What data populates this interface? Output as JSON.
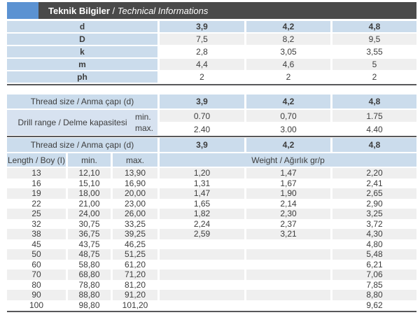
{
  "colors": {
    "accent_blue": "#5b92d2",
    "header_gray": "#4a4a4a",
    "row_blue": "#cbdcec",
    "label_blue": "#d7e2f0",
    "stripe_gray": "#efefef",
    "line_gray": "#58585a"
  },
  "header": {
    "title_tr": "Teknik Bilgiler",
    "separator": " / ",
    "title_en": "Technical Informations"
  },
  "spec_table": {
    "rows": [
      {
        "label": "d",
        "values": [
          "3,9",
          "4,2",
          "4,8"
        ]
      },
      {
        "label": "D",
        "values": [
          "7,5",
          "8,2",
          "9,5"
        ]
      },
      {
        "label": "k",
        "values": [
          "2,8",
          "3,05",
          "3,55"
        ]
      },
      {
        "label": "m",
        "values": [
          "4,4",
          "4,6",
          "5"
        ]
      },
      {
        "label": "ph",
        "values": [
          "2",
          "2",
          "2"
        ]
      }
    ]
  },
  "drill_table": {
    "thread_label": "Thread size / Anma çapı (d)",
    "thread_values": [
      "3,9",
      "4,2",
      "4,8"
    ],
    "range_label": "Drill range / Delme kapasitesi",
    "min_label": "min.",
    "max_label": "max.",
    "min_values": [
      "0.70",
      "0,70",
      "1.75"
    ],
    "max_values": [
      "2.40",
      "3.00",
      "4.40"
    ]
  },
  "weight_table": {
    "thread_label": "Thread size / Anma çapı (d)",
    "thread_values": [
      "3,9",
      "4,2",
      "4,8"
    ],
    "length_header": "Length / Boy (I)",
    "min_header": "min.",
    "max_header": "max.",
    "weight_header": "Weight / Ağırlık gr/p",
    "rows": [
      {
        "l": "13",
        "mn": "12,10",
        "mx": "13,90",
        "w1": "1,20",
        "w2": "1,47",
        "w3": "2,20"
      },
      {
        "l": "16",
        "mn": "15,10",
        "mx": "16,90",
        "w1": "1,31",
        "w2": "1,67",
        "w3": "2,41"
      },
      {
        "l": "19",
        "mn": "18,00",
        "mx": "20,00",
        "w1": "1,47",
        "w2": "1,90",
        "w3": "2,65"
      },
      {
        "l": "22",
        "mn": "21,00",
        "mx": "23,00",
        "w1": "1,65",
        "w2": "2,14",
        "w3": "2,90"
      },
      {
        "l": "25",
        "mn": "24,00",
        "mx": "26,00",
        "w1": "1,82",
        "w2": "2,30",
        "w3": "3,25"
      },
      {
        "l": "32",
        "mn": "30,75",
        "mx": "33,25",
        "w1": "2,24",
        "w2": "2,37",
        "w3": "3,72"
      },
      {
        "l": "38",
        "mn": "36,75",
        "mx": "39,25",
        "w1": "2,59",
        "w2": "3,21",
        "w3": "4,30"
      },
      {
        "l": "45",
        "mn": "43,75",
        "mx": "46,25",
        "w1": "",
        "w2": "",
        "w3": "4,80"
      },
      {
        "l": "50",
        "mn": "48,75",
        "mx": "51,25",
        "w1": "",
        "w2": "",
        "w3": "5,48"
      },
      {
        "l": "60",
        "mn": "58,80",
        "mx": "61,20",
        "w1": "",
        "w2": "",
        "w3": "6,21"
      },
      {
        "l": "70",
        "mn": "68,80",
        "mx": "71,20",
        "w1": "",
        "w2": "",
        "w3": "7,06"
      },
      {
        "l": "80",
        "mn": "78,80",
        "mx": "81,20",
        "w1": "",
        "w2": "",
        "w3": "7,85"
      },
      {
        "l": "90",
        "mn": "88,80",
        "mx": "91,20",
        "w1": "",
        "w2": "",
        "w3": "8,80"
      },
      {
        "l": "100",
        "mn": "98,80",
        "mx": "101,20",
        "w1": "",
        "w2": "",
        "w3": "9,62"
      }
    ]
  }
}
